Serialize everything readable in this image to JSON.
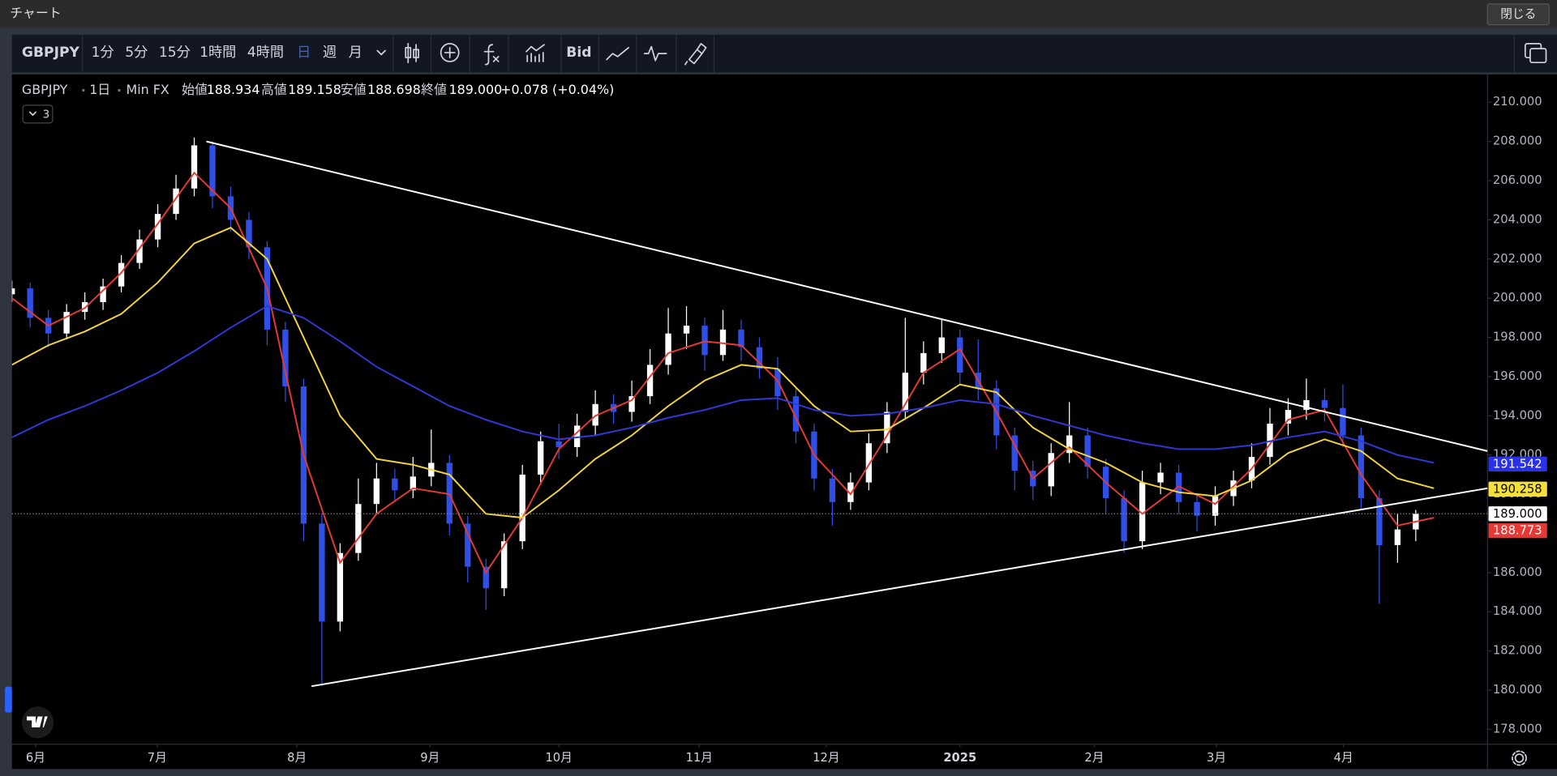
{
  "window": {
    "title": "チャート",
    "close": "閉じる"
  },
  "toolbar": {
    "symbol": "GBPJPY",
    "intervals": [
      "1分",
      "5分",
      "15分",
      "1時間",
      "4時間",
      "日",
      "週",
      "月"
    ],
    "active_index": 5,
    "bid": "Bid"
  },
  "legend": {
    "symbol": "GBPJPY",
    "interval": "1日",
    "source": "Min FX",
    "ohlc": [
      {
        "label": "始値",
        "value": "188.934"
      },
      {
        "label": "高値",
        "value": "189.158"
      },
      {
        "label": "安値",
        "value": "188.698"
      },
      {
        "label": "終値",
        "value": "189.000"
      }
    ],
    "change": "+0.078 (+0.04%)",
    "collapse": "3"
  },
  "chart_data": {
    "type": "candlestick",
    "up_color": "#ffffff",
    "down_color": "#2f4fe6",
    "xlim": [
      0,
      242.8
    ],
    "ylim": [
      177.24,
      211.42
    ],
    "grid": false,
    "xticks": [
      {
        "value": 3.9,
        "label": "6月"
      },
      {
        "value": 23.9,
        "label": "7月"
      },
      {
        "value": 46.9,
        "label": "8月"
      },
      {
        "value": 68.8,
        "label": "9月"
      },
      {
        "value": 90.0,
        "label": "10月"
      },
      {
        "value": 113.1,
        "label": "11月"
      },
      {
        "value": 134.0,
        "label": "12月"
      },
      {
        "value": 156.0,
        "label": "2025"
      },
      {
        "value": 178.1,
        "label": "2月"
      },
      {
        "value": 198.2,
        "label": "3月"
      },
      {
        "value": 219.1,
        "label": "4月"
      }
    ],
    "yticks": [
      {
        "value": 178,
        "label": "178.000"
      },
      {
        "value": 180,
        "label": "180.000"
      },
      {
        "value": 182,
        "label": "182.000"
      },
      {
        "value": 184,
        "label": "184.000"
      },
      {
        "value": 186,
        "label": "186.000"
      },
      {
        "value": 188,
        "label": "188.000"
      },
      {
        "value": 190,
        "label": "190.000"
      },
      {
        "value": 192,
        "label": "192.000"
      },
      {
        "value": 194,
        "label": "194.000"
      },
      {
        "value": 196,
        "label": "196.000"
      },
      {
        "value": 198,
        "label": "198.000"
      },
      {
        "value": 200,
        "label": "200.000"
      },
      {
        "value": 202,
        "label": "202.000"
      },
      {
        "value": 204,
        "label": "204.000"
      },
      {
        "value": 206,
        "label": "206.000"
      },
      {
        "value": 208,
        "label": "208.000"
      },
      {
        "value": 210,
        "label": "210.000"
      }
    ],
    "x": [
      0,
      3,
      6,
      9,
      12,
      15,
      18,
      21,
      24,
      27,
      30,
      33,
      36,
      39,
      42,
      45,
      48,
      51,
      54,
      57,
      60,
      63,
      66,
      69,
      72,
      75,
      78,
      81,
      84,
      87,
      90,
      93,
      96,
      99,
      102,
      105,
      108,
      111,
      114,
      117,
      120,
      123,
      126,
      129,
      132,
      135,
      138,
      141,
      144,
      147,
      150,
      153,
      156,
      159,
      162,
      165,
      168,
      171,
      174,
      177,
      180,
      183,
      186,
      189,
      192,
      195,
      198,
      201,
      204,
      207,
      210,
      213,
      216,
      219,
      222,
      225,
      228,
      231
    ],
    "open": [
      200.2,
      200.5,
      199.0,
      198.2,
      199.3,
      199.8,
      200.6,
      201.8,
      203.0,
      204.3,
      205.6,
      207.8,
      205.2,
      204.0,
      202.6,
      198.4,
      195.5,
      188.5,
      183.5,
      187.0,
      189.5,
      190.8,
      190.2,
      190.9,
      191.6,
      188.5,
      186.3,
      185.2,
      187.6,
      191.0,
      192.7,
      192.4,
      193.5,
      194.6,
      194.2,
      195.0,
      196.6,
      198.2,
      198.6,
      197.1,
      198.4,
      197.5,
      196.4,
      195.0,
      193.2,
      190.8,
      189.6,
      190.6,
      192.6,
      194.2,
      196.2,
      197.2,
      198.0,
      196.2,
      195.4,
      193.0,
      191.2,
      190.4,
      192.1,
      193.0,
      191.4,
      189.8,
      187.6,
      190.6,
      191.1,
      189.6,
      188.9,
      189.9,
      190.7,
      191.9,
      193.6,
      194.3,
      194.8,
      194.4,
      193.0,
      189.8,
      187.4,
      188.2
    ],
    "high": [
      200.9,
      200.8,
      199.4,
      199.7,
      200.3,
      201.0,
      202.2,
      203.5,
      204.8,
      206.3,
      208.2,
      208.0,
      205.7,
      204.4,
      202.9,
      198.8,
      195.9,
      189.0,
      187.5,
      190.8,
      191.6,
      191.3,
      191.9,
      193.3,
      192.0,
      188.9,
      186.7,
      188.0,
      191.5,
      193.2,
      193.6,
      194.1,
      195.3,
      195.1,
      195.8,
      197.4,
      199.5,
      199.6,
      199.0,
      199.4,
      198.9,
      198.0,
      197.0,
      195.4,
      193.6,
      191.3,
      191.1,
      193.1,
      194.7,
      199.0,
      197.8,
      198.9,
      198.4,
      197.9,
      195.8,
      193.4,
      191.7,
      192.6,
      194.7,
      193.4,
      191.8,
      190.2,
      191.2,
      191.6,
      191.5,
      190.0,
      190.4,
      191.2,
      192.6,
      194.4,
      194.9,
      195.9,
      195.4,
      195.6,
      193.4,
      190.2,
      189.0,
      189.2
    ],
    "low": [
      199.8,
      198.5,
      197.5,
      197.9,
      198.9,
      199.4,
      200.3,
      201.5,
      202.6,
      204.0,
      205.2,
      204.6,
      203.4,
      202.0,
      197.6,
      194.7,
      187.6,
      180.2,
      183.0,
      186.6,
      189.0,
      189.6,
      189.8,
      190.4,
      187.9,
      185.5,
      184.1,
      184.8,
      187.2,
      190.5,
      191.8,
      191.9,
      193.0,
      193.6,
      193.7,
      194.6,
      196.1,
      197.4,
      196.3,
      196.8,
      196.8,
      195.9,
      194.3,
      192.6,
      190.2,
      188.4,
      189.2,
      190.2,
      192.1,
      193.8,
      195.6,
      196.7,
      195.6,
      194.8,
      192.3,
      190.2,
      189.7,
      189.9,
      191.6,
      190.8,
      189.0,
      187.0,
      187.2,
      190.0,
      189.0,
      188.1,
      188.4,
      189.4,
      190.3,
      191.5,
      193.0,
      193.8,
      193.7,
      192.4,
      189.2,
      184.4,
      186.5,
      187.6
    ],
    "close": [
      200.5,
      199.0,
      198.2,
      199.3,
      199.8,
      200.6,
      201.8,
      203.0,
      204.3,
      205.6,
      207.8,
      205.2,
      204.0,
      202.6,
      198.4,
      195.5,
      188.5,
      183.5,
      187.0,
      189.5,
      190.8,
      190.2,
      190.9,
      191.6,
      188.5,
      186.3,
      185.2,
      187.6,
      191.0,
      192.7,
      192.4,
      193.5,
      194.6,
      194.2,
      195.0,
      196.6,
      198.2,
      198.6,
      197.1,
      198.4,
      197.5,
      196.4,
      195.0,
      193.2,
      190.8,
      189.6,
      190.6,
      192.6,
      194.2,
      196.2,
      197.2,
      198.0,
      196.2,
      195.4,
      193.0,
      191.2,
      190.4,
      192.1,
      193.0,
      191.4,
      189.8,
      187.6,
      190.6,
      191.1,
      189.6,
      188.9,
      189.9,
      190.7,
      191.9,
      193.6,
      194.3,
      194.8,
      194.4,
      193.0,
      189.8,
      187.4,
      188.2,
      189.0
    ],
    "line_x": [
      0,
      6,
      12,
      18,
      24,
      30,
      36,
      42,
      48,
      54,
      60,
      66,
      72,
      78,
      84,
      90,
      96,
      102,
      108,
      114,
      120,
      126,
      132,
      138,
      144,
      150,
      156,
      162,
      168,
      174,
      180,
      186,
      192,
      198,
      204,
      210,
      216,
      222,
      228,
      234
    ],
    "lines": [
      {
        "color": "#e53935",
        "values": [
          200.0,
          198.6,
          199.5,
          201.3,
          203.8,
          206.4,
          204.6,
          200.5,
          192.0,
          186.5,
          189.0,
          190.3,
          190.0,
          186.0,
          188.8,
          192.3,
          194.0,
          194.8,
          197.2,
          197.8,
          197.6,
          195.8,
          192.0,
          190.0,
          193.0,
          196.2,
          197.4,
          194.2,
          190.8,
          192.4,
          190.6,
          189.0,
          190.4,
          189.5,
          191.3,
          193.8,
          194.3,
          191.0,
          188.4,
          188.8
        ]
      },
      {
        "color": "#f2d43b",
        "values": [
          196.6,
          197.6,
          198.3,
          199.2,
          200.8,
          202.8,
          203.6,
          202.0,
          198.0,
          194.0,
          191.8,
          191.5,
          191.0,
          189.0,
          188.8,
          190.2,
          191.8,
          193.0,
          194.5,
          195.8,
          196.6,
          196.4,
          194.5,
          193.2,
          193.3,
          194.4,
          195.6,
          195.2,
          193.4,
          192.3,
          191.6,
          190.6,
          190.1,
          189.9,
          190.7,
          192.1,
          192.8,
          192.2,
          190.8,
          190.3
        ]
      },
      {
        "color": "#3038d8",
        "values": [
          192.9,
          193.8,
          194.5,
          195.3,
          196.2,
          197.3,
          198.5,
          199.6,
          199.0,
          197.8,
          196.5,
          195.5,
          194.5,
          193.8,
          193.2,
          192.8,
          193.0,
          193.4,
          193.9,
          194.3,
          194.8,
          194.9,
          194.3,
          194.0,
          194.1,
          194.4,
          194.8,
          194.6,
          194.0,
          193.5,
          193.0,
          192.6,
          192.3,
          192.3,
          192.5,
          192.9,
          193.2,
          192.7,
          192.0,
          191.6
        ]
      }
    ],
    "trendlines": [
      {
        "color": "#ffffff",
        "x": [
          32,
          242.8
        ],
        "values": [
          208.0,
          192.2
        ]
      },
      {
        "color": "#ffffff",
        "x": [
          49.3,
          242.8
        ],
        "values": [
          180.2,
          190.3
        ]
      }
    ],
    "price_labels": [
      {
        "value": 191.542,
        "label": "191.542",
        "color": "#2b32e6",
        "text_color": "#ffffff",
        "line": false
      },
      {
        "value": 190.258,
        "label": "190.258",
        "color": "#f5df3b",
        "text_color": "#000000",
        "line": false
      },
      {
        "value": 189,
        "label": "189.000",
        "color": "#ffffff",
        "text_color": "#000000",
        "line": true
      },
      {
        "value": 188.773,
        "label": "188.773",
        "color": "#e53935",
        "text_color": "#ffffff",
        "line": false
      }
    ]
  }
}
